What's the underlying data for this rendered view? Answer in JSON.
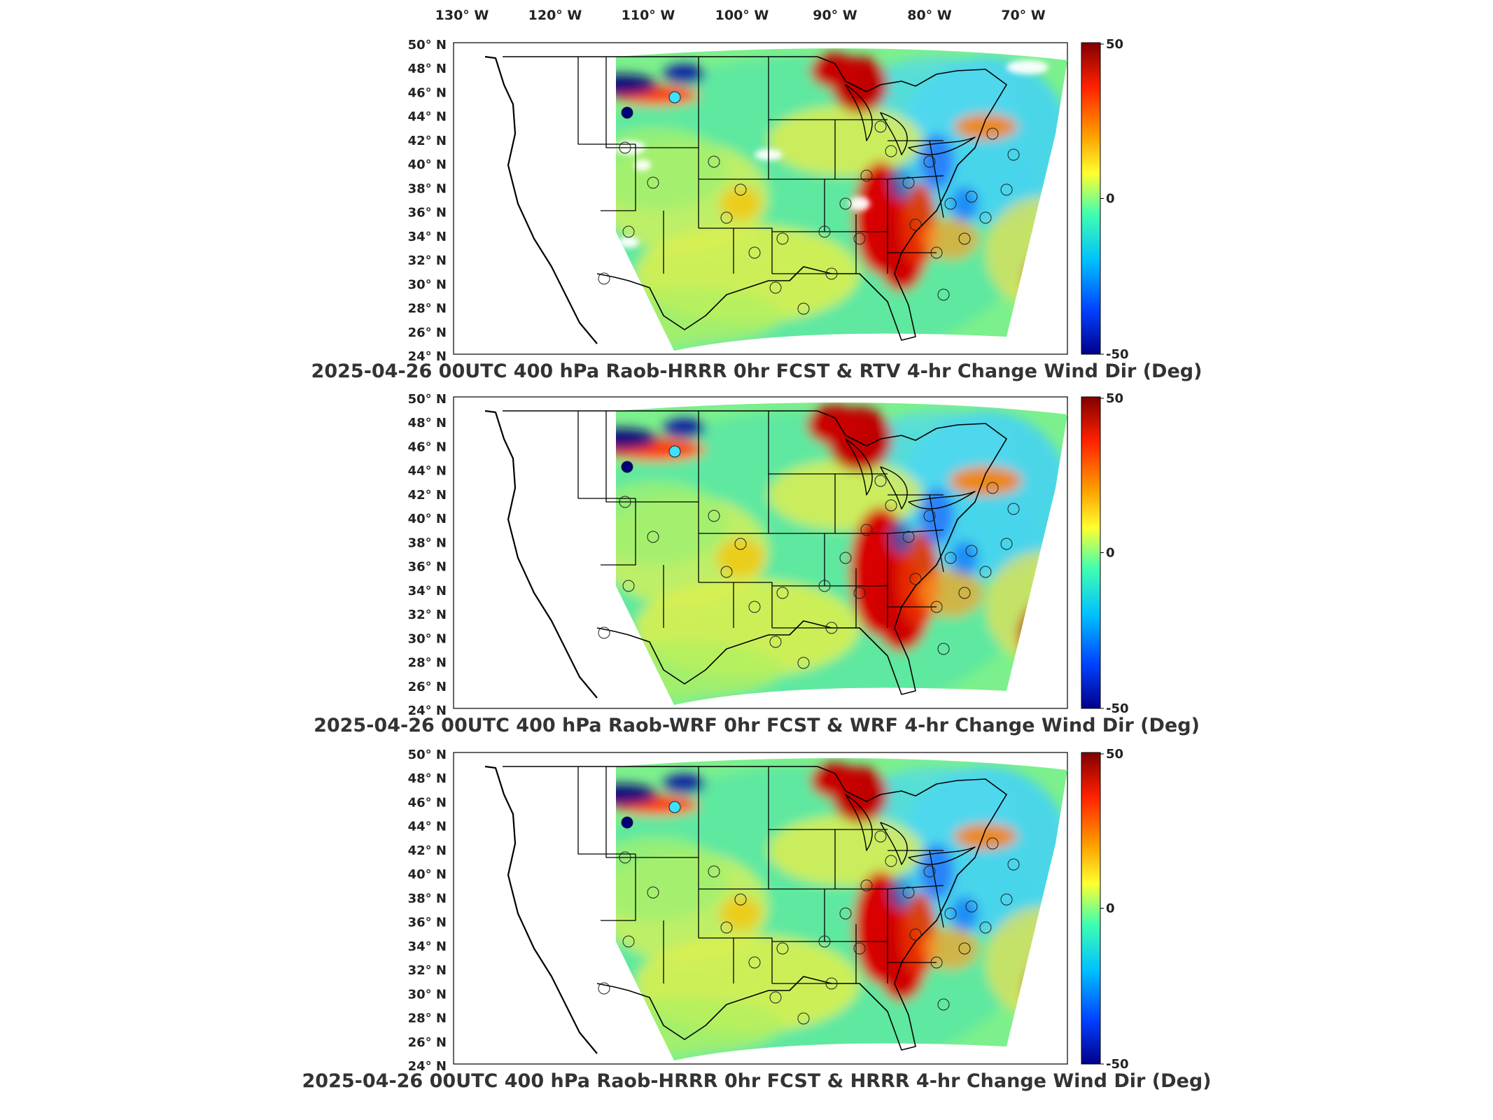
{
  "top_lon_labels": [
    "130° W",
    "120° W",
    "110° W",
    "100° W",
    "90° W",
    "80° W",
    "70° W"
  ],
  "lat_labels": [
    "50° N",
    "48° N",
    "46° N",
    "44° N",
    "42° N",
    "40° N",
    "38° N",
    "36° N",
    "34° N",
    "32° N",
    "30° N",
    "28° N",
    "26° N",
    "24° N"
  ],
  "colorbar": {
    "ticks": [
      "50",
      "0",
      "-50"
    ],
    "colors": [
      "#800000",
      "#ff2000",
      "#ffa000",
      "#ffff30",
      "#40ffb0",
      "#00c0ff",
      "#0040ff",
      "#00008a"
    ]
  },
  "panels": [
    {
      "title": "2025-04-26 00UTC 400 hPa Raob-HRRR 0hr FCST & RTV 4-hr Change Wind Dir (Deg)"
    },
    {
      "title": "2025-04-26 00UTC 400 hPa Raob-WRF 0hr FCST & WRF 4-hr Change Wind Dir (Deg)"
    },
    {
      "title": "2025-04-26 00UTC 400 hPa Raob-HRRR 0hr FCST & HRRR 4-hr Change Wind Dir (Deg)"
    }
  ],
  "colors": {
    "coast": "#000000",
    "field_base": "#7cf08c",
    "warm_band": "#c80000",
    "cool_band": "#1040ff",
    "dark_blue": "#00007a"
  }
}
